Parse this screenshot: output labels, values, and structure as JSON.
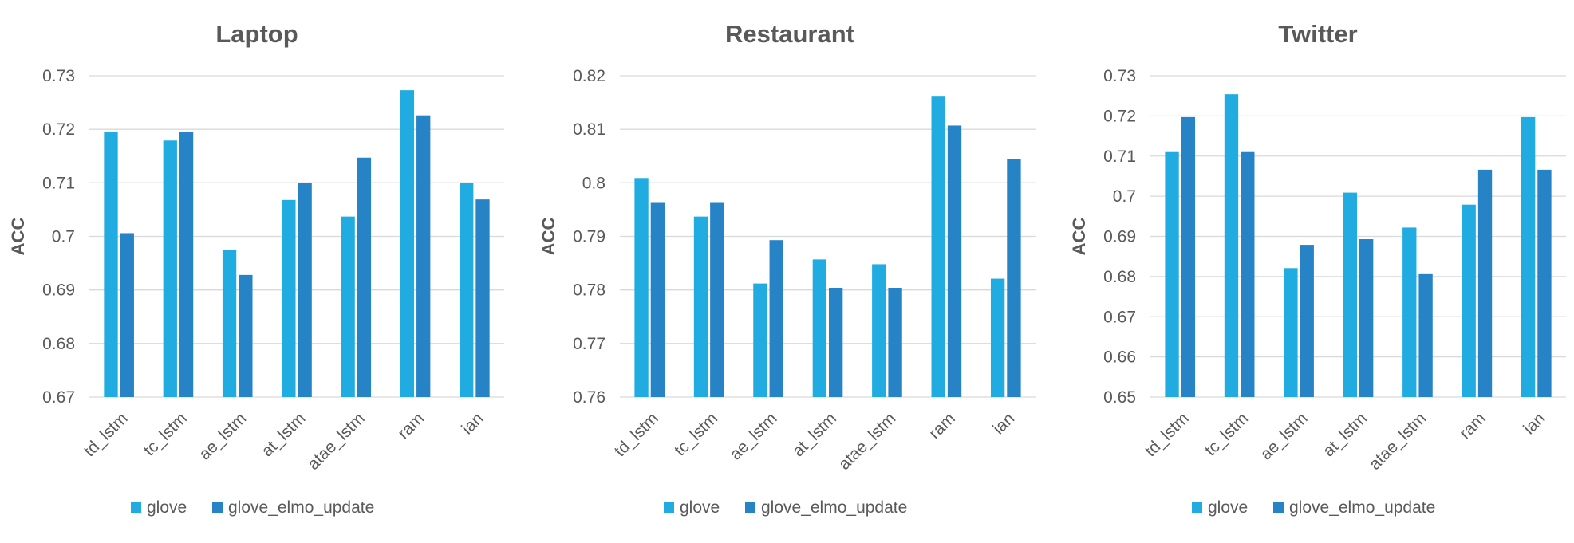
{
  "colors": {
    "glove": "#21ACE1",
    "glove_elmo_update": "#2683C6"
  },
  "legend": [
    "glove",
    "glove_elmo_update"
  ],
  "chart_data": [
    {
      "type": "bar",
      "title": "Laptop",
      "ylabel": "ACC",
      "xlabel": "",
      "ylim": [
        0.67,
        0.73
      ],
      "yticks": [
        "0.67",
        "0.68",
        "0.69",
        "0.7",
        "0.71",
        "0.72",
        "0.73"
      ],
      "categories": [
        "td_lstm",
        "tc_lstm",
        "ae_lstm",
        "at_lstm",
        "atae_lstm",
        "ram",
        "ian"
      ],
      "series": [
        {
          "name": "glove",
          "values": [
            0.7195,
            0.7179,
            0.6975,
            0.7068,
            0.7037,
            0.7273,
            0.71
          ]
        },
        {
          "name": "glove_elmo_update",
          "values": [
            0.7006,
            0.7195,
            0.6928,
            0.71,
            0.7147,
            0.7226,
            0.7069
          ]
        }
      ],
      "grid": true,
      "legend_position": "bottom"
    },
    {
      "type": "bar",
      "title": "Restaurant",
      "ylabel": "ACC",
      "xlabel": "",
      "ylim": [
        0.76,
        0.82
      ],
      "yticks": [
        "0.76",
        "0.77",
        "0.78",
        "0.79",
        "0.8",
        "0.81",
        "0.82"
      ],
      "categories": [
        "td_lstm",
        "tc_lstm",
        "ae_lstm",
        "at_lstm",
        "atae_lstm",
        "ram",
        "ian"
      ],
      "series": [
        {
          "name": "glove",
          "values": [
            0.8009,
            0.7937,
            0.7812,
            0.7857,
            0.7848,
            0.8161,
            0.7821
          ]
        },
        {
          "name": "glove_elmo_update",
          "values": [
            0.7964,
            0.7964,
            0.7893,
            0.7804,
            0.7804,
            0.8107,
            0.8045
          ]
        }
      ],
      "grid": true,
      "legend_position": "bottom"
    },
    {
      "type": "bar",
      "title": "Twitter",
      "ylabel": "ACC",
      "xlabel": "",
      "ylim": [
        0.65,
        0.73
      ],
      "yticks": [
        "0.65",
        "0.66",
        "0.67",
        "0.68",
        "0.69",
        "0.7",
        "0.71",
        "0.72",
        "0.73"
      ],
      "categories": [
        "td_lstm",
        "tc_lstm",
        "ae_lstm",
        "at_lstm",
        "atae_lstm",
        "ram",
        "ian"
      ],
      "series": [
        {
          "name": "glove",
          "values": [
            0.711,
            0.7254,
            0.6821,
            0.7009,
            0.6922,
            0.6979,
            0.7197
          ]
        },
        {
          "name": "glove_elmo_update",
          "values": [
            0.7197,
            0.711,
            0.6879,
            0.6893,
            0.6806,
            0.7066,
            0.7066
          ]
        }
      ],
      "grid": true,
      "legend_position": "bottom"
    }
  ]
}
